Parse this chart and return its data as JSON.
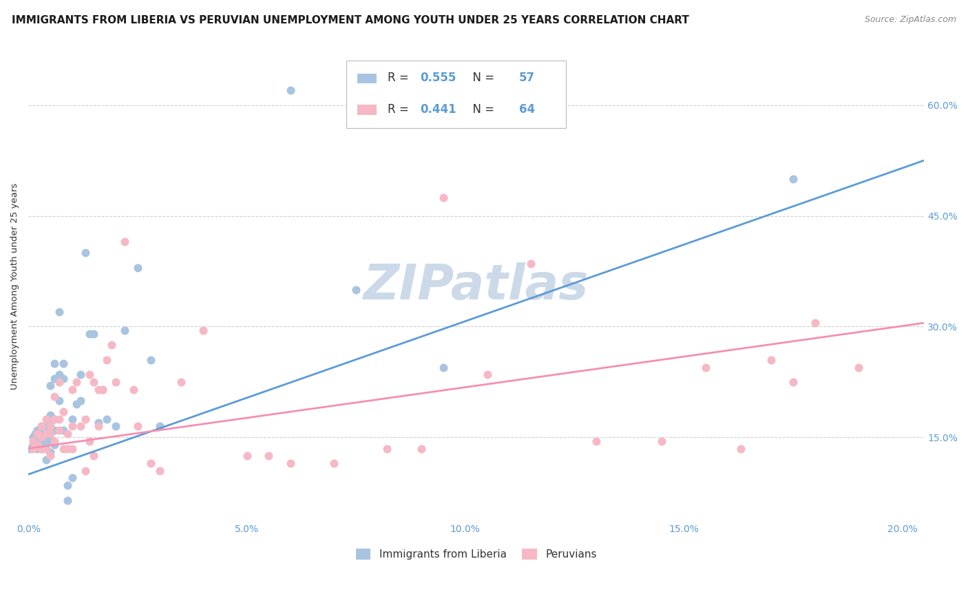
{
  "title": "IMMIGRANTS FROM LIBERIA VS PERUVIAN UNEMPLOYMENT AMONG YOUTH UNDER 25 YEARS CORRELATION CHART",
  "source": "Source: ZipAtlas.com",
  "ylabel": "Unemployment Among Youth under 25 years",
  "x_tick_vals": [
    0.0,
    0.05,
    0.1,
    0.15,
    0.2
  ],
  "x_tick_labels": [
    "0.0%",
    "5.0%",
    "10.0%",
    "15.0%",
    "20.0%"
  ],
  "y_tick_vals": [
    0.15,
    0.3,
    0.45,
    0.6
  ],
  "y_tick_labels": [
    "15.0%",
    "30.0%",
    "45.0%",
    "60.0%"
  ],
  "xlim": [
    0.0,
    0.205
  ],
  "ylim": [
    0.04,
    0.67
  ],
  "watermark": "ZIPatlas",
  "blue_R": "0.555",
  "blue_N": "57",
  "pink_R": "0.441",
  "pink_N": "64",
  "blue_scatter_x": [
    0.0005,
    0.001,
    0.001,
    0.0015,
    0.002,
    0.002,
    0.002,
    0.0025,
    0.003,
    0.003,
    0.003,
    0.003,
    0.0035,
    0.004,
    0.004,
    0.004,
    0.004,
    0.0045,
    0.005,
    0.005,
    0.005,
    0.005,
    0.005,
    0.005,
    0.006,
    0.006,
    0.006,
    0.006,
    0.006,
    0.007,
    0.007,
    0.007,
    0.008,
    0.008,
    0.008,
    0.009,
    0.009,
    0.01,
    0.01,
    0.011,
    0.012,
    0.012,
    0.013,
    0.014,
    0.015,
    0.016,
    0.017,
    0.018,
    0.02,
    0.022,
    0.025,
    0.028,
    0.03,
    0.06,
    0.075,
    0.095,
    0.175
  ],
  "blue_scatter_y": [
    0.135,
    0.14,
    0.15,
    0.155,
    0.135,
    0.145,
    0.16,
    0.14,
    0.135,
    0.145,
    0.155,
    0.165,
    0.14,
    0.12,
    0.135,
    0.15,
    0.165,
    0.175,
    0.13,
    0.145,
    0.155,
    0.165,
    0.18,
    0.22,
    0.14,
    0.16,
    0.175,
    0.23,
    0.25,
    0.2,
    0.235,
    0.32,
    0.16,
    0.23,
    0.25,
    0.065,
    0.085,
    0.095,
    0.175,
    0.195,
    0.2,
    0.235,
    0.4,
    0.29,
    0.29,
    0.17,
    0.215,
    0.175,
    0.165,
    0.295,
    0.38,
    0.255,
    0.165,
    0.62,
    0.35,
    0.245,
    0.5
  ],
  "pink_scatter_x": [
    0.001,
    0.001,
    0.002,
    0.002,
    0.003,
    0.003,
    0.003,
    0.004,
    0.004,
    0.004,
    0.005,
    0.005,
    0.005,
    0.006,
    0.006,
    0.006,
    0.007,
    0.007,
    0.007,
    0.008,
    0.008,
    0.009,
    0.009,
    0.01,
    0.01,
    0.01,
    0.011,
    0.012,
    0.013,
    0.013,
    0.014,
    0.014,
    0.015,
    0.015,
    0.016,
    0.016,
    0.017,
    0.018,
    0.019,
    0.02,
    0.022,
    0.024,
    0.025,
    0.028,
    0.03,
    0.035,
    0.04,
    0.05,
    0.055,
    0.06,
    0.07,
    0.082,
    0.09,
    0.095,
    0.105,
    0.115,
    0.13,
    0.145,
    0.155,
    0.163,
    0.17,
    0.175,
    0.18,
    0.19
  ],
  "pink_scatter_y": [
    0.135,
    0.145,
    0.14,
    0.155,
    0.135,
    0.15,
    0.165,
    0.135,
    0.155,
    0.175,
    0.125,
    0.155,
    0.165,
    0.145,
    0.175,
    0.205,
    0.16,
    0.175,
    0.225,
    0.135,
    0.185,
    0.135,
    0.155,
    0.135,
    0.165,
    0.215,
    0.225,
    0.165,
    0.105,
    0.175,
    0.145,
    0.235,
    0.125,
    0.225,
    0.165,
    0.215,
    0.215,
    0.255,
    0.275,
    0.225,
    0.415,
    0.215,
    0.165,
    0.115,
    0.105,
    0.225,
    0.295,
    0.125,
    0.125,
    0.115,
    0.115,
    0.135,
    0.135,
    0.475,
    0.235,
    0.385,
    0.145,
    0.145,
    0.245,
    0.135,
    0.255,
    0.225,
    0.305,
    0.245
  ],
  "blue_line_x": [
    0.0,
    0.205
  ],
  "blue_line_y": [
    0.1,
    0.525
  ],
  "pink_line_x": [
    0.0,
    0.205
  ],
  "pink_line_y": [
    0.135,
    0.305
  ],
  "blue_color": "#5b9bd5",
  "pink_color": "#f48fb1",
  "blue_scatter_color": "#a8c4e0",
  "pink_scatter_color": "#f5b8c4",
  "grid_color": "#d0d0d0",
  "title_fontsize": 11,
  "source_fontsize": 9,
  "axis_label_fontsize": 9.5,
  "tick_fontsize": 10,
  "watermark_color": "#ccd9e8",
  "watermark_fontsize": 52,
  "background_color": "#ffffff"
}
